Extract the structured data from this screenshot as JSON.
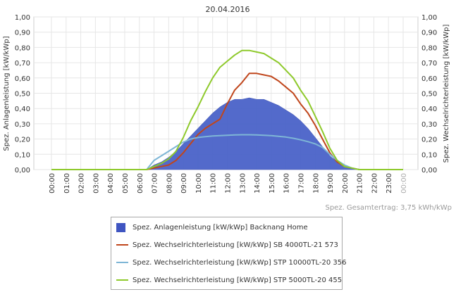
{
  "chart_data": {
    "type": "area",
    "title": "20.04.2016",
    "ylabel_left": "Spez. Anlagenleistung [kW/kWp]",
    "ylabel_right": "Spez. Wechselrichterleistung [kW/kWp]",
    "ylim": [
      0,
      1.0
    ],
    "yticks": [
      "0,00",
      "0,10",
      "0,20",
      "0,30",
      "0,40",
      "0,50",
      "0,60",
      "0,70",
      "0,80",
      "0,90",
      "1,00"
    ],
    "xticks": [
      "00:00",
      "01:00",
      "02:00",
      "03:00",
      "04:00",
      "05:00",
      "06:00",
      "07:00",
      "08:00",
      "09:00",
      "10:00",
      "11:00",
      "12:00",
      "13:00",
      "14:00",
      "15:00",
      "16:00",
      "17:00",
      "18:00",
      "19:00",
      "20:00",
      "21:00",
      "22:00",
      "23:00",
      "00:00"
    ],
    "x_hours": [
      0,
      1,
      2,
      3,
      4,
      5,
      6,
      6.5,
      7,
      7.5,
      8,
      8.5,
      9,
      9.5,
      10,
      10.5,
      11,
      11.5,
      12,
      12.5,
      13,
      13.5,
      14,
      14.5,
      15,
      15.5,
      16,
      16.5,
      17,
      17.5,
      18,
      18.5,
      19,
      19.5,
      20,
      20.5,
      21,
      22,
      23,
      24
    ],
    "grid": true,
    "legend_position": "bottom",
    "series": [
      {
        "name": "Spez. Anlagenleistung [kW/kWp] Backnang Home",
        "kind": "area",
        "color": "#4a62c8",
        "values": [
          0,
          0,
          0,
          0,
          0,
          0,
          0,
          0,
          0.03,
          0.05,
          0.08,
          0.12,
          0.17,
          0.22,
          0.27,
          0.32,
          0.37,
          0.41,
          0.44,
          0.46,
          0.46,
          0.47,
          0.46,
          0.46,
          0.44,
          0.42,
          0.39,
          0.36,
          0.32,
          0.27,
          0.21,
          0.15,
          0.09,
          0.05,
          0.02,
          0.01,
          0,
          0,
          0,
          0
        ]
      },
      {
        "name": "Spez. Wechselrichterleistung [kW/kWp] SB 4000TL-21 573",
        "kind": "line",
        "color": "#c0461c",
        "values": [
          0,
          0,
          0,
          0,
          0,
          0,
          0,
          0,
          0.01,
          0.02,
          0.03,
          0.06,
          0.11,
          0.17,
          0.23,
          0.27,
          0.3,
          0.33,
          0.43,
          0.52,
          0.57,
          0.63,
          0.63,
          0.62,
          0.61,
          0.58,
          0.54,
          0.5,
          0.43,
          0.37,
          0.29,
          0.2,
          0.11,
          0.05,
          0.02,
          0.01,
          0,
          0,
          0,
          0
        ]
      },
      {
        "name": "Spez. Wechselrichterleistung [kW/kWp] STP 10000TL-20 356",
        "kind": "line",
        "color": "#7eb6d6",
        "values": [
          0,
          0,
          0,
          0,
          0,
          0,
          0,
          0,
          0.06,
          0.09,
          0.12,
          0.15,
          0.18,
          0.2,
          0.21,
          0.215,
          0.22,
          0.222,
          0.225,
          0.227,
          0.228,
          0.228,
          0.227,
          0.225,
          0.222,
          0.218,
          0.213,
          0.205,
          0.195,
          0.183,
          0.168,
          0.145,
          0.1,
          0.06,
          0.03,
          0.01,
          0,
          0,
          0,
          0
        ]
      },
      {
        "name": "Spez. Wechselrichterleistung [kW/kWp] STP 5000TL-20 455",
        "kind": "line",
        "color": "#8ec92b",
        "values": [
          0,
          0,
          0,
          0,
          0,
          0,
          0,
          0,
          0.02,
          0.04,
          0.07,
          0.12,
          0.21,
          0.32,
          0.41,
          0.51,
          0.6,
          0.67,
          0.71,
          0.75,
          0.78,
          0.78,
          0.77,
          0.76,
          0.73,
          0.7,
          0.65,
          0.6,
          0.52,
          0.45,
          0.35,
          0.25,
          0.14,
          0.06,
          0.02,
          0.01,
          0,
          0,
          0,
          0
        ]
      }
    ]
  },
  "footer": {
    "total_label": "Spez. Gesamtertrag: 3,75 kWh/kWp"
  },
  "legend": {
    "items": [
      {
        "label": "Spez. Anlagenleistung [kW/kWp] Backnang Home",
        "color": "#3f55c1",
        "kind": "area"
      },
      {
        "label": "Spez. Wechselrichterleistung [kW/kWp] SB 4000TL-21 573",
        "color": "#c0461c",
        "kind": "line"
      },
      {
        "label": "Spez. Wechselrichterleistung [kW/kWp] STP 10000TL-20 356",
        "color": "#7eb6d6",
        "kind": "line"
      },
      {
        "label": "Spez. Wechselrichterleistung [kW/kWp] STP 5000TL-20 455",
        "color": "#8ec92b",
        "kind": "line"
      }
    ]
  }
}
